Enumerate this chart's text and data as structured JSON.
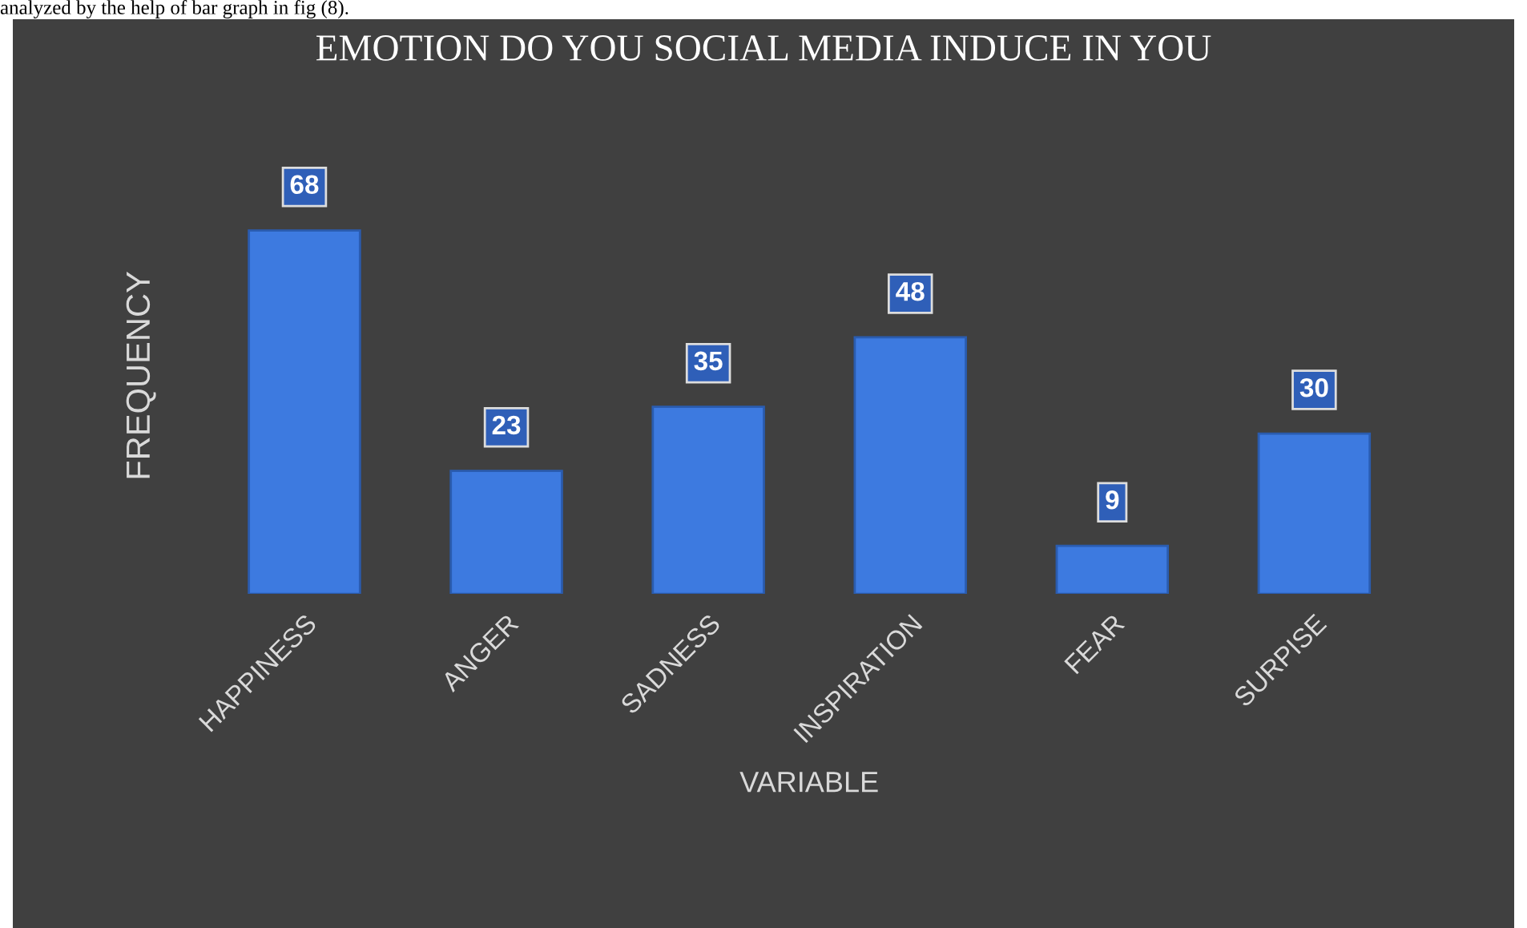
{
  "chart_data": {
    "type": "bar",
    "title": "EMOTION DO YOU SOCIAL MEDIA INDUCE IN YOU",
    "xlabel": "VARIABLE",
    "ylabel": "FREQUENCY",
    "categories": [
      "HAPPINESS",
      "ANGER",
      "SADNESS",
      "INSPIRATION",
      "FEAR",
      "SURPISE"
    ],
    "values": [
      68,
      23,
      35,
      48,
      9,
      30
    ],
    "color": "#3d7ae0",
    "data_labels": true,
    "grid": false,
    "legend": false,
    "annotations": [
      "analyzed by the help of bar graph in fig (8)."
    ]
  }
}
